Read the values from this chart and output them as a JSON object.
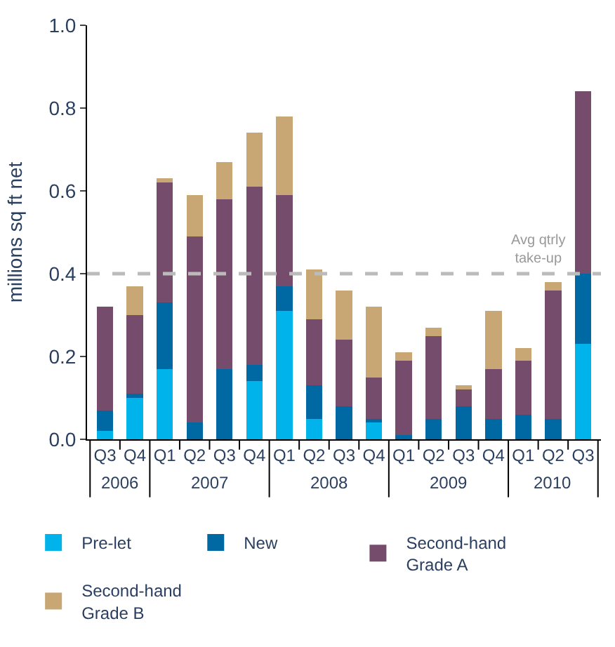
{
  "chart_data": {
    "type": "bar",
    "stacked": true,
    "ylabel": "millions sq ft net",
    "categories": [
      "Q3",
      "Q4",
      "Q1",
      "Q2",
      "Q3",
      "Q4",
      "Q1",
      "Q2",
      "Q3",
      "Q4",
      "Q1",
      "Q2",
      "Q3",
      "Q4",
      "Q1",
      "Q2",
      "Q3"
    ],
    "series": [
      {
        "name": "Pre-let",
        "color": "#00b3eb",
        "values": [
          0.02,
          0.1,
          0.17,
          0,
          0,
          0.14,
          0.31,
          0.05,
          0,
          0.04,
          0,
          0,
          0,
          0,
          0,
          0,
          0.23
        ]
      },
      {
        "name": "New",
        "color": "#0069a3",
        "values": [
          0.05,
          0.01,
          0.16,
          0.04,
          0.17,
          0.04,
          0.06,
          0.08,
          0.08,
          0.01,
          0.01,
          0.05,
          0.08,
          0.05,
          0.06,
          0.05,
          0.17
        ]
      },
      {
        "name": "Second-hand\nGrade A",
        "color": "#754c6b",
        "values": [
          0.25,
          0.19,
          0.29,
          0.45,
          0.41,
          0.43,
          0.22,
          0.16,
          0.16,
          0.1,
          0.18,
          0.2,
          0.04,
          0.12,
          0.13,
          0.31,
          0.44
        ]
      },
      {
        "name": "Second-hand\nGrade B",
        "color": "#c8a774",
        "values": [
          0,
          0.07,
          0.01,
          0.1,
          0.09,
          0.13,
          0.19,
          0.12,
          0.12,
          0.17,
          0.02,
          0.02,
          0.01,
          0.14,
          0.03,
          0.02,
          0
        ]
      }
    ],
    "annotations": [
      "2006",
      "2007",
      "2008",
      "2009",
      "2010"
    ],
    "ylim": [
      0,
      1
    ],
    "yticks": [
      {
        "value": 0,
        "label": "0.0"
      },
      0.2,
      0.4,
      0.6,
      0.8,
      {
        "value": 1,
        "label": "1.0"
      }
    ],
    "ref_lines": [
      {
        "axis": "y",
        "value": 0.4,
        "label": "Avg qtrly\ntake-up",
        "color": "#bbbbbb",
        "line_style": "dashed"
      }
    ],
    "legend": "bottom"
  }
}
